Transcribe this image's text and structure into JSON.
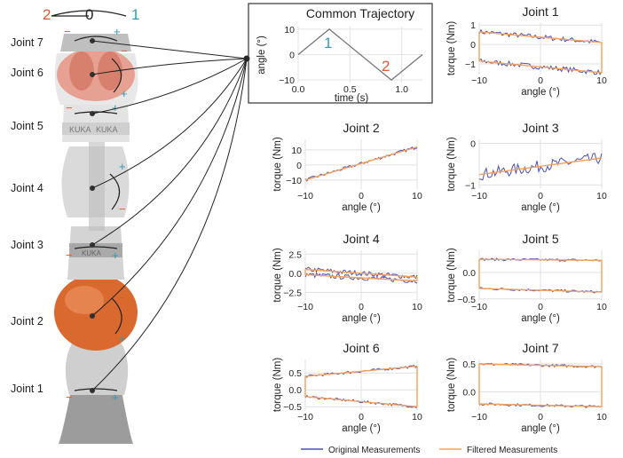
{
  "colors": {
    "original": "#4b4fb8",
    "filtered": "#f5a15a",
    "plus": "#2f9bb5",
    "minus": "#e2592f",
    "robot_light": "#d9d9d9",
    "robot_dark": "#8a8a8a",
    "robot_orange": "#d9692e"
  },
  "robot": {
    "joint_labels": [
      "Joint 7",
      "Joint 6",
      "Joint 5",
      "Joint 4",
      "Joint 3",
      "Joint 2",
      "Joint 1"
    ],
    "top_scale": {
      "left": "2",
      "center": "0",
      "right": "1"
    },
    "brand_text": "KUKA",
    "plus_sign": "+",
    "minus_sign": "−"
  },
  "trajectory": {
    "title": "Common Trajectory",
    "ylabel": "angle (°)",
    "xlabel": "time (s)",
    "xticks": [
      "0.0",
      "0.5",
      "1.0"
    ],
    "yticks": [
      "10",
      "0",
      "−10"
    ],
    "marker1": "1",
    "marker2": "2"
  },
  "legend": {
    "original": "Original Measurements",
    "filtered": "Filtered Measurements"
  },
  "chart_data": [
    {
      "type": "line",
      "title": "Common Trajectory",
      "xlabel": "time (s)",
      "ylabel": "angle (°)",
      "xlim": [
        0,
        1.2
      ],
      "ylim": [
        -11,
        11
      ],
      "x": [
        0,
        0.3,
        0.9,
        1.2
      ],
      "y": [
        0,
        10,
        -10,
        0
      ]
    },
    {
      "type": "line",
      "title": "Joint 1",
      "xlabel": "angle (°)",
      "ylabel": "torque (Nm)",
      "xlim": [
        -10,
        10
      ],
      "ylim": [
        -1.5,
        1.1
      ],
      "xticks": [
        "−10",
        "0",
        "10"
      ],
      "yticks": [
        "1",
        "0",
        "−1"
      ],
      "series": [
        {
          "name": "Original Measurements",
          "branches": [
            {
              "x": [
                -10,
                10
              ],
              "y": [
                0.65,
                0.1
              ]
            },
            {
              "x": [
                -10,
                10
              ],
              "y": [
                -0.85,
                -1.45
              ]
            }
          ]
        },
        {
          "name": "Filtered Measurements",
          "branches": [
            {
              "x": [
                -10,
                10
              ],
              "y": [
                0.65,
                0.1
              ]
            },
            {
              "x": [
                -10,
                10
              ],
              "y": [
                -0.85,
                -1.45
              ]
            }
          ]
        }
      ]
    },
    {
      "type": "line",
      "title": "Joint 2",
      "xlabel": "angle (°)",
      "ylabel": "torque (Nm)",
      "xlim": [
        -10,
        10
      ],
      "ylim": [
        -16,
        17
      ],
      "xticks": [
        "−10",
        "0",
        "10"
      ],
      "yticks": [
        "10",
        "0",
        "−10"
      ],
      "series": [
        {
          "name": "Original Measurements",
          "branches": [
            {
              "x": [
                -10,
                10
              ],
              "y": [
                -10,
                12
              ]
            }
          ]
        },
        {
          "name": "Filtered Measurements",
          "branches": [
            {
              "x": [
                -10,
                10
              ],
              "y": [
                -10,
                12
              ]
            }
          ]
        }
      ]
    },
    {
      "type": "line",
      "title": "Joint 3",
      "xlabel": "angle (°)",
      "ylabel": "torque (Nm)",
      "xlim": [
        -10,
        10
      ],
      "ylim": [
        -1.1,
        0.1
      ],
      "xticks": [
        "−10",
        "0",
        "10"
      ],
      "yticks": [
        "0",
        "−1"
      ],
      "series": [
        {
          "name": "Original Measurements",
          "branches": [
            {
              "x": [
                -10,
                10
              ],
              "y": [
                -0.75,
                -0.35
              ]
            }
          ]
        },
        {
          "name": "Filtered Measurements",
          "branches": [
            {
              "x": [
                -10,
                10
              ],
              "y": [
                -0.75,
                -0.35
              ]
            }
          ]
        }
      ]
    },
    {
      "type": "line",
      "title": "Joint 4",
      "xlabel": "angle (°)",
      "ylabel": "torque (Nm)",
      "xlim": [
        -10,
        10
      ],
      "ylim": [
        -3.5,
        3
      ],
      "xticks": [
        "−10",
        "0",
        "10"
      ],
      "yticks": [
        "2.5",
        "0.0",
        "−2.5"
      ],
      "series": [
        {
          "name": "Original Measurements",
          "branches": [
            {
              "x": [
                -10,
                10
              ],
              "y": [
                0.5,
                -0.5
              ]
            },
            {
              "x": [
                -10,
                10
              ],
              "y": [
                -0.2,
                -1
              ]
            }
          ]
        },
        {
          "name": "Filtered Measurements",
          "branches": [
            {
              "x": [
                -10,
                10
              ],
              "y": [
                0.5,
                -0.5
              ]
            },
            {
              "x": [
                -10,
                10
              ],
              "y": [
                -0.2,
                -1
              ]
            }
          ]
        }
      ]
    },
    {
      "type": "line",
      "title": "Joint 5",
      "xlabel": "angle (°)",
      "ylabel": "torque (Nm)",
      "xlim": [
        -10,
        10
      ],
      "ylim": [
        -0.52,
        0.42
      ],
      "xticks": [
        "−10",
        "0",
        "10"
      ],
      "yticks": [
        "0.0",
        "−0.5"
      ],
      "series": [
        {
          "name": "Original Measurements",
          "branches": [
            {
              "x": [
                -10,
                10
              ],
              "y": [
                0.25,
                0.23
              ]
            },
            {
              "x": [
                -10,
                10
              ],
              "y": [
                -0.3,
                -0.37
              ]
            }
          ]
        },
        {
          "name": "Filtered Measurements",
          "branches": [
            {
              "x": [
                -10,
                10
              ],
              "y": [
                0.25,
                0.23
              ]
            },
            {
              "x": [
                -10,
                10
              ],
              "y": [
                -0.3,
                -0.37
              ]
            }
          ]
        }
      ]
    },
    {
      "type": "line",
      "title": "Joint 6",
      "xlabel": "angle (°)",
      "ylabel": "torque (Nm)",
      "xlim": [
        -10,
        10
      ],
      "ylim": [
        -0.6,
        0.9
      ],
      "xticks": [
        "−10",
        "0",
        "10"
      ],
      "yticks": [
        "0.5",
        "0.0",
        "−0.5"
      ],
      "series": [
        {
          "name": "Original Measurements",
          "branches": [
            {
              "x": [
                -10,
                10
              ],
              "y": [
                0.4,
                0.7
              ]
            },
            {
              "x": [
                -10,
                10
              ],
              "y": [
                -0.2,
                -0.5
              ]
            }
          ]
        },
        {
          "name": "Filtered Measurements",
          "branches": [
            {
              "x": [
                -10,
                10
              ],
              "y": [
                0.4,
                0.7
              ]
            },
            {
              "x": [
                -10,
                10
              ],
              "y": [
                -0.2,
                -0.5
              ]
            }
          ]
        }
      ]
    },
    {
      "type": "line",
      "title": "Joint 7",
      "xlabel": "angle (°)",
      "ylabel": "torque (Nm)",
      "xlim": [
        -10,
        10
      ],
      "ylim": [
        -0.33,
        0.58
      ],
      "xticks": [
        "−10",
        "0",
        "10"
      ],
      "yticks": [
        "0.5",
        "0.0"
      ],
      "series": [
        {
          "name": "Original Measurements",
          "branches": [
            {
              "x": [
                -10,
                10
              ],
              "y": [
                0.5,
                0.45
              ]
            },
            {
              "x": [
                -10,
                10
              ],
              "y": [
                -0.22,
                -0.27
              ]
            }
          ]
        },
        {
          "name": "Filtered Measurements",
          "branches": [
            {
              "x": [
                -10,
                10
              ],
              "y": [
                0.5,
                0.45
              ]
            },
            {
              "x": [
                -10,
                10
              ],
              "y": [
                -0.22,
                -0.27
              ]
            }
          ]
        }
      ]
    }
  ]
}
